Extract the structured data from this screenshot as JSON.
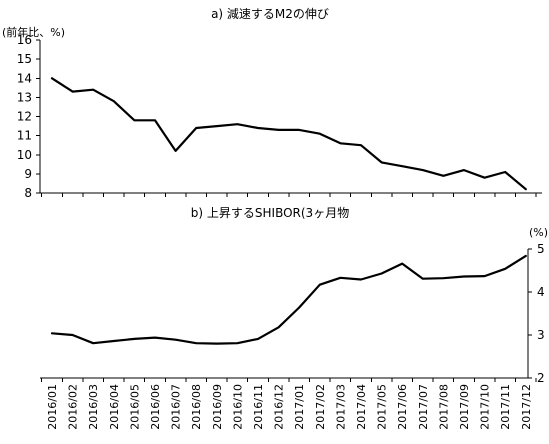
{
  "chart_data": [
    {
      "type": "line",
      "title": "a) 減速するM2の伸び",
      "unit_label": "(前年比、%)",
      "ylim": [
        8,
        16
      ],
      "yticks": [
        8,
        9,
        10,
        11,
        12,
        13,
        14,
        15,
        16
      ],
      "y_axis_side": "left",
      "grid": false,
      "legend": "none",
      "x": [
        "2016/01",
        "2016/02",
        "2016/03",
        "2016/04",
        "2016/05",
        "2016/06",
        "2016/07",
        "2016/08",
        "2016/09",
        "2016/10",
        "2016/11",
        "2016/12",
        "2017/01",
        "2017/02",
        "2017/03",
        "2017/04",
        "2017/05",
        "2017/06",
        "2017/07",
        "2017/08",
        "2017/09",
        "2017/10",
        "2017/11",
        "2017/12"
      ],
      "series": [
        {
          "values": [
            14.0,
            13.3,
            13.4,
            12.8,
            11.8,
            11.8,
            10.2,
            11.4,
            11.5,
            11.6,
            11.4,
            11.3,
            11.3,
            11.1,
            10.6,
            10.5,
            9.6,
            9.4,
            9.2,
            8.9,
            9.2,
            8.8,
            9.1,
            8.2
          ]
        }
      ]
    },
    {
      "type": "line",
      "title": "b) 上昇するSHIBOR(3ヶ月物",
      "unit_label": "(%)",
      "ylim": [
        2,
        5
      ],
      "yticks": [
        2,
        3,
        4,
        5
      ],
      "y_axis_side": "right",
      "grid": false,
      "legend": "none",
      "x": [
        "2016/01",
        "2016/02",
        "2016/03",
        "2016/04",
        "2016/05",
        "2016/06",
        "2016/07",
        "2016/08",
        "2016/09",
        "2016/10",
        "2016/11",
        "2016/12",
        "2017/01",
        "2017/02",
        "2017/03",
        "2017/04",
        "2017/05",
        "2017/06",
        "2017/07",
        "2017/08",
        "2017/09",
        "2017/10",
        "2017/11",
        "2017/12"
      ],
      "x_tick_labels": [
        "2016/01",
        "2016/02",
        "2016/03",
        "2016/04",
        "2016/05",
        "2016/06",
        "2016/07",
        "2016/08",
        "2016/09",
        "2016/10",
        "2016/11",
        "2016/12",
        "2017/01",
        "2017/02",
        "2017/03",
        "2017/04",
        "2017/05",
        "2017/06",
        "2017/07",
        "2017/08",
        "2017/09",
        "2017/10",
        "2017/11",
        "2017/12"
      ],
      "series": [
        {
          "values": [
            3.04,
            3.0,
            2.81,
            2.86,
            2.91,
            2.94,
            2.89,
            2.81,
            2.8,
            2.81,
            2.91,
            3.18,
            3.64,
            4.17,
            4.33,
            4.29,
            4.43,
            4.66,
            4.31,
            4.32,
            4.36,
            4.37,
            4.54,
            4.84
          ]
        }
      ]
    }
  ]
}
